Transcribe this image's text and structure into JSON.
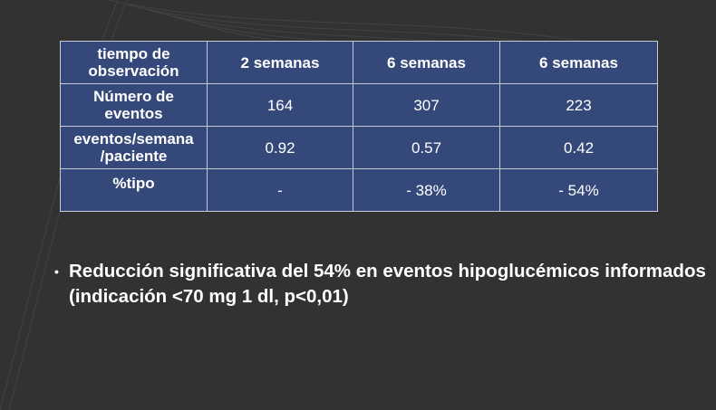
{
  "table": {
    "header": [
      "tiempo de observación",
      "2 semanas",
      "6 semanas",
      "6 semanas"
    ],
    "rows": [
      [
        "Número de eventos",
        "164",
        "307",
        "223"
      ],
      [
        "eventos/semana /paciente",
        "0.92",
        "0.57",
        "0.42"
      ],
      [
        "%tipo",
        "-",
        "- 38%",
        "- 54%"
      ]
    ]
  },
  "bullets": [
    "Reducción significativa del 54% en eventos hipoglucémicos informados (indicación <70 mg 1 dl, p<0,01)"
  ],
  "colors": {
    "background": "#323232",
    "table_fill": "#35487a",
    "text": "#ffffff"
  }
}
